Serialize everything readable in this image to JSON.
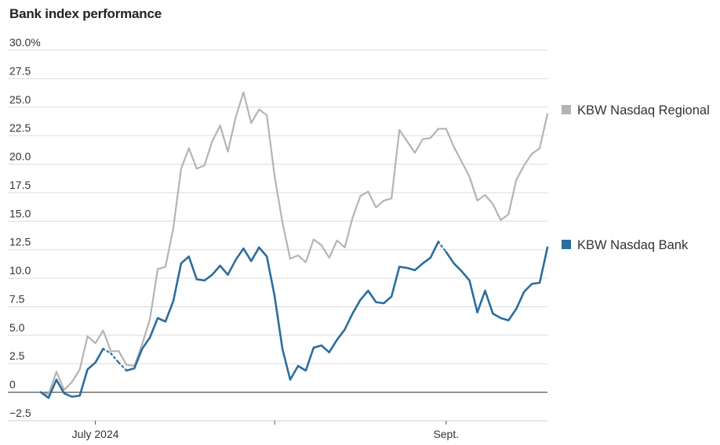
{
  "chart_data": {
    "type": "line",
    "title": "Bank index performance",
    "xlabel": "",
    "ylabel": "",
    "ylim": [
      -2.5,
      30.0
    ],
    "y_ticks": [
      "30.0%",
      "27.5",
      "25.0",
      "22.5",
      "20.0",
      "17.5",
      "15.0",
      "12.5",
      "10.0",
      "7.5",
      "5.0",
      "2.5",
      "0",
      "−2.5"
    ],
    "y_tick_values": [
      30.0,
      27.5,
      25.0,
      22.5,
      20.0,
      17.5,
      15.0,
      12.5,
      10.0,
      7.5,
      5.0,
      2.5,
      0,
      -2.5
    ],
    "x_ticks": [
      {
        "label": "July 2024",
        "index": 7
      },
      {
        "label": "",
        "index": 30
      },
      {
        "label": "Sept.",
        "index": 52
      }
    ],
    "grid": "horizontal",
    "legend": "right",
    "x_count": 66,
    "series": [
      {
        "name": "KBW Nasdaq Regional",
        "color": "#b4b4b4",
        "gaps": [],
        "values": [
          0.0,
          -0.2,
          1.8,
          0.2,
          0.9,
          2.0,
          4.9,
          4.3,
          5.4,
          3.6,
          3.6,
          2.4,
          2.3,
          4.2,
          6.4,
          10.8,
          11.0,
          14.4,
          19.6,
          21.4,
          19.6,
          19.9,
          22.0,
          23.4,
          21.1,
          24.1,
          26.3,
          23.6,
          24.8,
          24.3,
          18.9,
          14.9,
          11.7,
          12.0,
          11.4,
          13.4,
          12.9,
          11.8,
          13.3,
          12.7,
          15.3,
          17.2,
          17.6,
          16.2,
          16.8,
          17.0,
          23.0,
          22.0,
          21.0,
          22.2,
          22.3,
          23.1,
          23.1,
          21.5,
          20.2,
          18.9,
          16.8,
          17.3,
          16.5,
          15.1,
          15.6,
          18.6,
          19.9,
          20.9,
          21.4,
          24.4
        ]
      },
      {
        "name": "KBW Nasdaq Bank",
        "color": "#2a6d9e",
        "gaps": [
          8,
          9,
          10,
          11,
          51,
          52
        ],
        "values": [
          0.0,
          -0.5,
          1.1,
          -0.1,
          -0.4,
          -0.3,
          2.0,
          2.6,
          3.8,
          3.4,
          2.6,
          1.9,
          2.1,
          3.8,
          4.8,
          6.5,
          6.2,
          8.0,
          11.3,
          11.9,
          9.9,
          9.8,
          10.3,
          11.1,
          10.3,
          11.6,
          12.6,
          11.5,
          12.7,
          11.9,
          8.4,
          3.8,
          1.1,
          2.3,
          1.9,
          3.9,
          4.1,
          3.5,
          4.6,
          5.5,
          6.9,
          8.1,
          8.9,
          7.9,
          7.8,
          8.4,
          11.0,
          10.9,
          10.7,
          11.3,
          11.8,
          13.2,
          12.3,
          11.3,
          10.6,
          9.8,
          7.0,
          8.9,
          6.9,
          6.5,
          6.3,
          7.3,
          8.8,
          9.5,
          9.6,
          12.7
        ]
      }
    ]
  }
}
